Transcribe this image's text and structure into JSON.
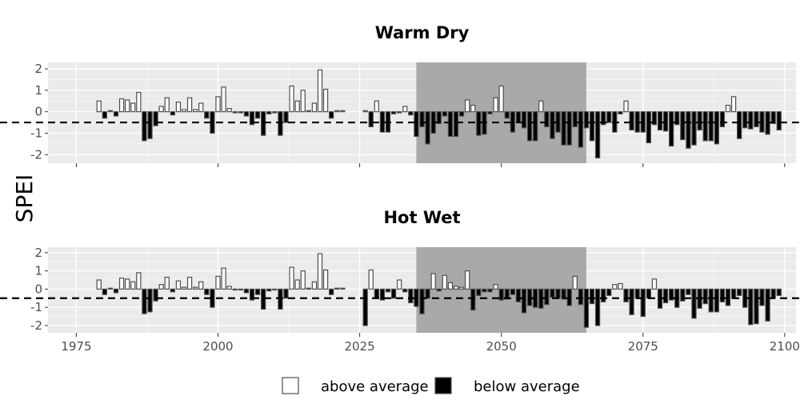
{
  "ylabel": "SPEI",
  "colors": {
    "panel_bg": "#ebebeb",
    "grid": "#ffffff",
    "highlight": "#a9a9a9",
    "above": "#ffffff",
    "below": "#000000",
    "bar_stroke": "#4d4d4d"
  },
  "legend": {
    "above_label": "above average",
    "below_label": "below average"
  },
  "chart_data": [
    {
      "type": "bar",
      "title": "Warm Dry",
      "ylim": [
        -2.4,
        2.3
      ],
      "xlim": [
        1970,
        2102
      ],
      "yticks": [
        2,
        1,
        0,
        -1,
        -2
      ],
      "xticks": [
        1975,
        2000,
        2025,
        2050,
        2075,
        2100
      ],
      "show_xtick_labels": false,
      "threshold": -0.5,
      "highlight": [
        2035,
        2065
      ],
      "historical": {
        "start_year": 1979,
        "values": [
          0.5,
          -0.3,
          0.05,
          -0.2,
          0.6,
          0.55,
          0.4,
          0.9,
          -1.35,
          -1.25,
          -0.65,
          0.25,
          0.65,
          -0.15,
          0.45,
          0.1,
          0.65,
          0.1,
          0.4,
          -0.3,
          -1.0,
          0.7,
          1.15,
          0.15,
          -0.05,
          -0.05,
          -0.2,
          -0.6,
          -0.3,
          -1.1,
          -0.1,
          -0.05,
          -1.1,
          -0.5,
          1.2,
          0.5,
          1.0,
          0.05,
          0.4,
          1.95,
          1.05,
          -0.3,
          0.05,
          0.05
        ]
      },
      "projection": {
        "start_year": 2026,
        "values": [
          0.05,
          -0.7,
          0.5,
          -0.95,
          -0.95,
          -0.1,
          -0.05,
          0.25,
          -0.15,
          -1.15,
          -0.7,
          -1.5,
          -1.0,
          -0.55,
          -0.2,
          -1.15,
          -1.15,
          -0.2,
          0.55,
          0.3,
          -1.1,
          -1.05,
          -0.1,
          0.65,
          1.2,
          -0.3,
          -0.95,
          -0.5,
          -0.75,
          -1.35,
          -1.35,
          0.5,
          -0.7,
          -1.25,
          -0.95,
          -1.55,
          -1.55,
          -0.7,
          -1.65,
          -0.75,
          -1.35,
          -2.15,
          -0.6,
          -0.5,
          -0.95,
          -0.1,
          0.5,
          -0.85,
          -0.95,
          -0.95,
          -1.45,
          -0.6,
          -0.85,
          -0.9,
          -1.6,
          -0.6,
          -1.3,
          -1.7,
          -1.55,
          -0.85,
          -1.35,
          -1.35,
          -1.5,
          -0.7,
          0.3,
          0.7,
          -1.25,
          -0.75,
          -0.8,
          -0.7,
          -0.95,
          -1.05,
          -0.55,
          -0.85
        ]
      }
    },
    {
      "type": "bar",
      "title": "Hot Wet",
      "ylim": [
        -2.4,
        2.3
      ],
      "xlim": [
        1970,
        2102
      ],
      "yticks": [
        2,
        1,
        0,
        -1,
        -2
      ],
      "xticks": [
        1975,
        2000,
        2025,
        2050,
        2075,
        2100
      ],
      "show_xtick_labels": true,
      "threshold": -0.5,
      "highlight": [
        2035,
        2065
      ],
      "historical": {
        "start_year": 1979,
        "values": [
          0.5,
          -0.3,
          0.05,
          -0.2,
          0.6,
          0.55,
          0.4,
          0.9,
          -1.35,
          -1.25,
          -0.65,
          0.25,
          0.65,
          -0.15,
          0.45,
          0.1,
          0.65,
          0.1,
          0.4,
          -0.3,
          -1.0,
          0.7,
          1.15,
          0.15,
          -0.05,
          -0.05,
          -0.2,
          -0.6,
          -0.3,
          -1.1,
          -0.1,
          -0.05,
          -1.1,
          -0.5,
          1.2,
          0.5,
          1.0,
          0.05,
          0.4,
          1.95,
          1.05,
          -0.3,
          0.05,
          0.05
        ]
      },
      "projection": {
        "start_year": 2026,
        "values": [
          -2.0,
          1.05,
          -0.5,
          -0.6,
          -0.15,
          -0.5,
          0.5,
          -0.15,
          -0.75,
          -0.95,
          -1.35,
          -0.5,
          0.85,
          -0.1,
          0.75,
          0.35,
          0.15,
          0.1,
          1.0,
          -1.15,
          -0.35,
          -0.15,
          -0.15,
          0.25,
          -0.6,
          -0.55,
          -0.3,
          -0.7,
          -1.3,
          -0.9,
          -1.0,
          -1.05,
          -0.85,
          -0.45,
          -0.5,
          -0.55,
          -0.9,
          0.7,
          -0.85,
          -2.1,
          -0.8,
          -2.0,
          -0.7,
          -0.35,
          0.25,
          0.3,
          -0.7,
          -1.4,
          -0.5,
          -1.5,
          -0.5,
          0.55,
          -1.05,
          -0.75,
          -0.6,
          -1.0,
          -0.65,
          -0.3,
          -1.6,
          -1.05,
          -0.8,
          -1.25,
          -1.25,
          -0.7,
          -0.9,
          -0.5,
          -0.35,
          -1.0,
          -1.95,
          -1.9,
          -0.9,
          -1.75,
          -0.5,
          -0.35
        ]
      }
    }
  ]
}
